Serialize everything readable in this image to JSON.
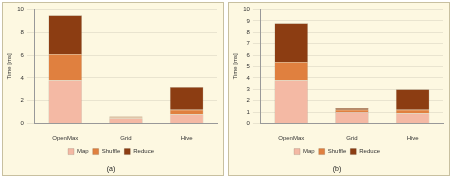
{
  "chart_data": [
    {
      "type": "bar",
      "title": "(a)",
      "y_label": "Time [ms]",
      "categories": [
        "OpenMax",
        "Grid",
        "Hive"
      ],
      "series": [
        {
          "name": "Map",
          "color": "#f4b9a4",
          "values": [
            3.8,
            0.45,
            0.8
          ]
        },
        {
          "name": "Shuffle",
          "color": "#e0803f",
          "values": [
            2.3,
            0.1,
            0.4
          ]
        },
        {
          "name": "Reduce",
          "color": "#8c3d12",
          "values": [
            3.4,
            0.05,
            2.0
          ]
        }
      ],
      "ylim": [
        0,
        10
      ],
      "yticks": [
        0,
        2,
        4,
        6,
        8,
        10
      ],
      "stacked": true,
      "grid": true,
      "legend": "bottom"
    },
    {
      "type": "bar",
      "title": "(b)",
      "y_label": "Time [ms]",
      "categories": [
        "OpenMax",
        "Grid",
        "Hive"
      ],
      "series": [
        {
          "name": "Map",
          "color": "#f4b9a4",
          "values": [
            3.8,
            1.0,
            0.9
          ]
        },
        {
          "name": "Shuffle",
          "color": "#e0803f",
          "values": [
            1.6,
            0.2,
            0.3
          ]
        },
        {
          "name": "Reduce",
          "color": "#8c3d12",
          "values": [
            3.4,
            0.15,
            1.8
          ]
        }
      ],
      "ylim": [
        0,
        10
      ],
      "yticks": [
        0,
        1,
        2,
        3,
        4,
        5,
        6,
        7,
        8,
        9,
        10
      ],
      "stacked": true,
      "grid": true,
      "legend": "bottom"
    }
  ]
}
